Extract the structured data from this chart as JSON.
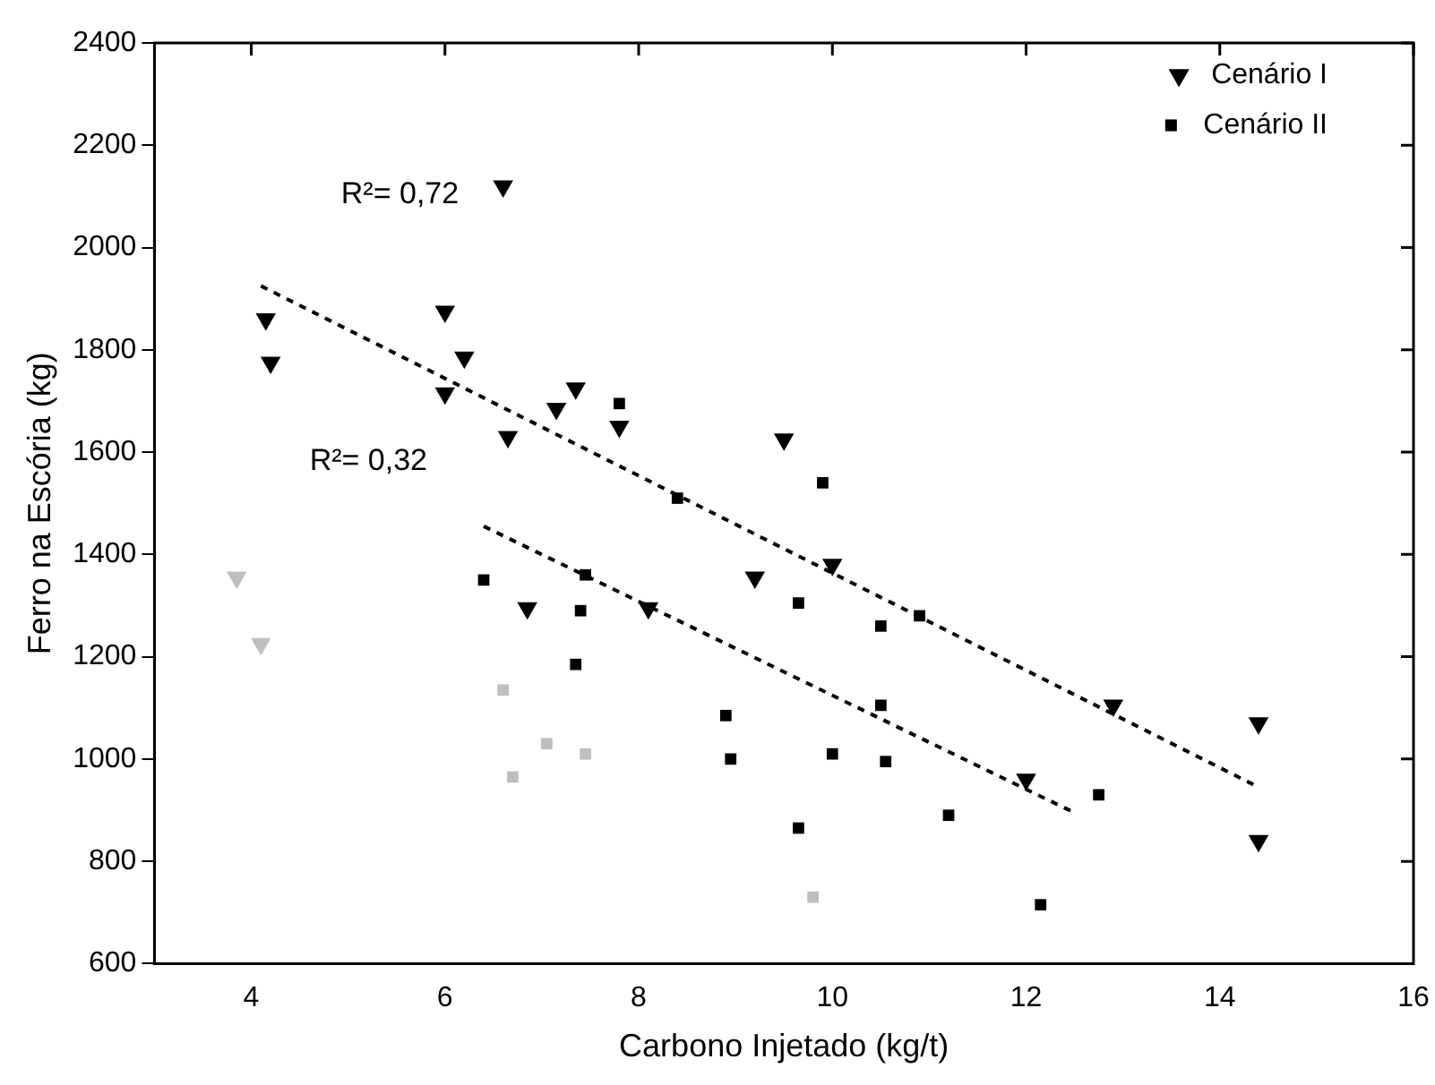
{
  "chart_data": {
    "type": "scatter",
    "xlabel": "Carbono Injetado (kg/t)",
    "ylabel": "Ferro na Escória (kg)",
    "xlim": [
      3,
      16
    ],
    "xticks": [
      4,
      6,
      8,
      10,
      12,
      14,
      16
    ],
    "ylim": [
      600,
      2400
    ],
    "yticks": [
      600,
      800,
      1000,
      1200,
      1400,
      1600,
      1800,
      2000,
      2200,
      2400
    ],
    "grid": false,
    "legend": "top right",
    "series": [
      {
        "name": "Cenário I",
        "color": "#000000",
        "marker": "triangle",
        "x": [
          4.15,
          4.2,
          6.6,
          6.0,
          6.2,
          6.0,
          6.65,
          7.15,
          7.35,
          7.8,
          6.85,
          8.1,
          9.5,
          10.0,
          9.2,
          12.9,
          14.4,
          14.4,
          12.0
        ],
        "values": [
          1860,
          1775,
          2120,
          1875,
          1785,
          1715,
          1630,
          1685,
          1725,
          1650,
          1295,
          1295,
          1625,
          1380,
          1355,
          1105,
          1070,
          840,
          960
        ]
      },
      {
        "name": "Cenário II",
        "color": "#000000",
        "marker": "square",
        "x": [
          7.8,
          8.4,
          9.9,
          9.65,
          10.5,
          10.9,
          7.45,
          6.4,
          7.4,
          7.35,
          8.9,
          8.95,
          10.5,
          10.0,
          10.55,
          9.65,
          11.2,
          12.75,
          12.15
        ],
        "values": [
          1695,
          1510,
          1540,
          1305,
          1260,
          1280,
          1360,
          1350,
          1290,
          1185,
          1085,
          1000,
          1105,
          1010,
          995,
          865,
          890,
          930,
          715
        ]
      },
      {
        "color": "#bfbfbf",
        "marker": "triangle",
        "x": [
          3.85,
          4.1
        ],
        "values": [
          1355,
          1225
        ]
      },
      {
        "color": "#bfbfbf",
        "marker": "square",
        "x": [
          6.6,
          6.7,
          7.05,
          7.45,
          9.8
        ],
        "values": [
          1135,
          965,
          1030,
          1010,
          730
        ]
      },
      {
        "type": "line",
        "color": "#000000",
        "line_style": "dashed",
        "marker": "none",
        "x": [
          4.1,
          14.4
        ],
        "values": [
          1925,
          945
        ]
      },
      {
        "type": "line",
        "color": "#000000",
        "line_style": "dashed",
        "marker": "none",
        "x": [
          6.4,
          12.5
        ],
        "values": [
          1455,
          895
        ]
      }
    ],
    "annotations": [
      "R²= 0,72",
      "R²= 0,32"
    ]
  }
}
